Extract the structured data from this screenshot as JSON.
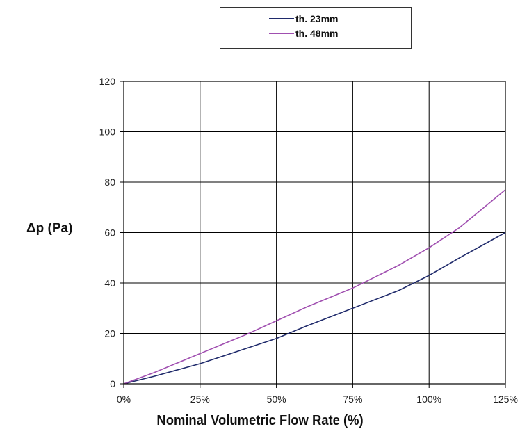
{
  "chart_data": {
    "type": "line",
    "title": "",
    "xlabel": "Nominal Volumetric Flow Rate (%)",
    "ylabel": "Δp (Pa)",
    "xlim": [
      0,
      125
    ],
    "ylim": [
      0,
      120
    ],
    "x_ticks": [
      0,
      25,
      50,
      75,
      100,
      125
    ],
    "x_tick_labels": [
      "0%",
      "25%",
      "50%",
      "75%",
      "100%",
      "125%"
    ],
    "y_ticks": [
      0,
      20,
      40,
      60,
      80,
      100,
      120
    ],
    "y_tick_labels": [
      "0",
      "20",
      "40",
      "60",
      "80",
      "100",
      "120"
    ],
    "grid": true,
    "legend_position": "top-center",
    "series": [
      {
        "name": "th. 23mm",
        "color": "#1f2a6b",
        "x": [
          0,
          10,
          25,
          40,
          50,
          60,
          75,
          90,
          100,
          110,
          125
        ],
        "y": [
          0,
          3,
          8,
          14,
          18,
          23,
          30,
          37,
          43,
          50,
          60
        ]
      },
      {
        "name": "th. 48mm",
        "color": "#a04fb0",
        "x": [
          0,
          10,
          25,
          40,
          50,
          60,
          75,
          90,
          100,
          110,
          125
        ],
        "y": [
          0,
          4.5,
          12,
          19.5,
          25,
          30.5,
          38,
          47,
          54,
          62,
          77
        ]
      }
    ]
  }
}
